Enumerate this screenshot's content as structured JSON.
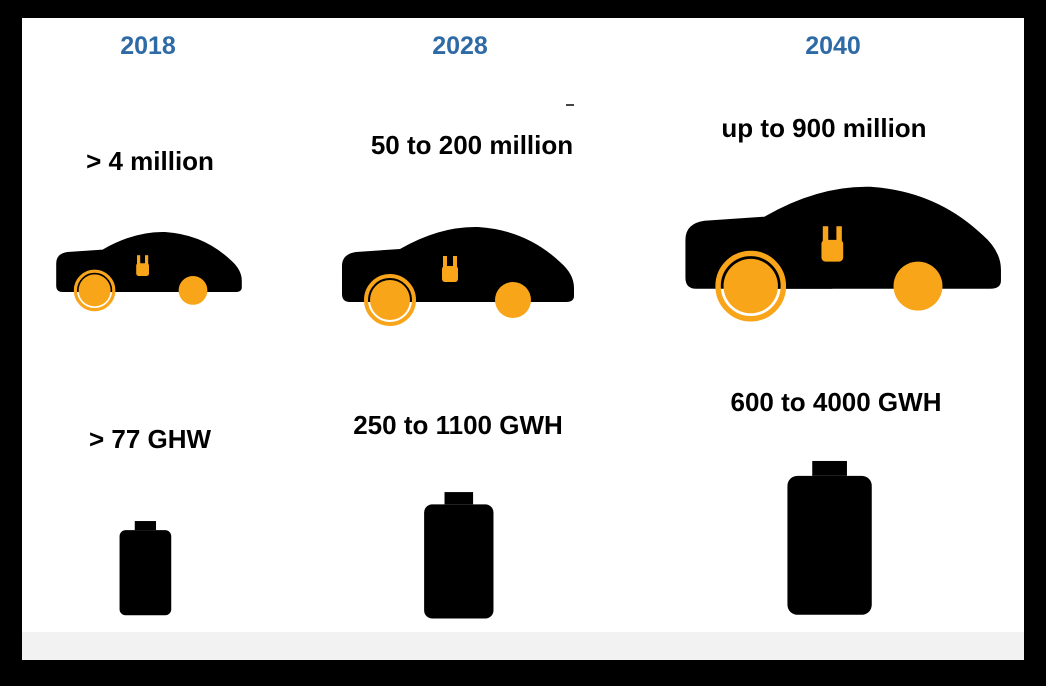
{
  "columns": [
    {
      "year": "2018",
      "vehicles": "> 4 million",
      "capacity": "> 77 GHW"
    },
    {
      "year": "2028",
      "vehicles": "50 to 200 million",
      "capacity": "250 to 1100 GWH"
    },
    {
      "year": "2040",
      "vehicles": "up to 900 million",
      "capacity": "600 to 4000 GWH"
    }
  ]
}
